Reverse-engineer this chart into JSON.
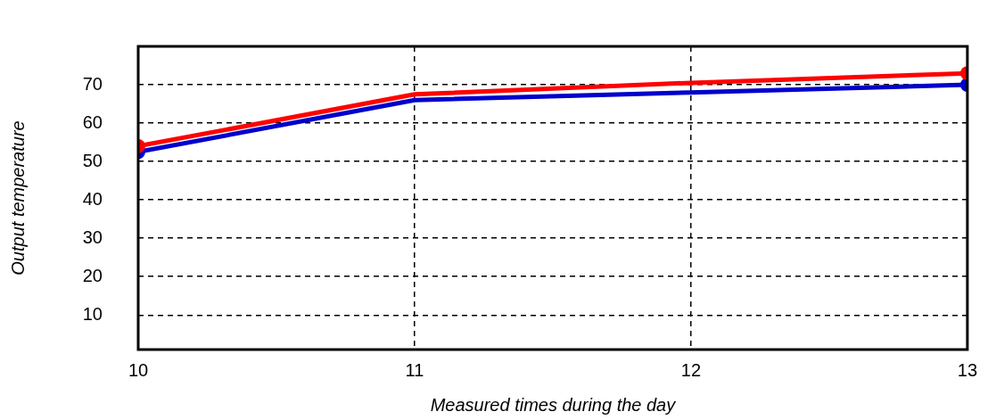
{
  "chart_data": {
    "type": "line",
    "xlabel": "Measured times during the day",
    "ylabel": "Output temperature",
    "x": [
      10,
      11,
      12,
      13
    ],
    "series": [
      {
        "color": "#ff0000",
        "values": [
          54,
          67.5,
          70.5,
          73
        ]
      },
      {
        "color": "#0000cc",
        "values": [
          52.5,
          66,
          68,
          70
        ]
      }
    ],
    "xlim": [
      10,
      13
    ],
    "xticks": [
      10,
      11,
      12,
      13
    ],
    "ylim": [
      1,
      80
    ],
    "yticks": [
      10,
      20,
      30,
      40,
      50,
      60,
      70
    ],
    "grid": true,
    "legend": false,
    "marker": "circle",
    "line_style": "solid"
  }
}
